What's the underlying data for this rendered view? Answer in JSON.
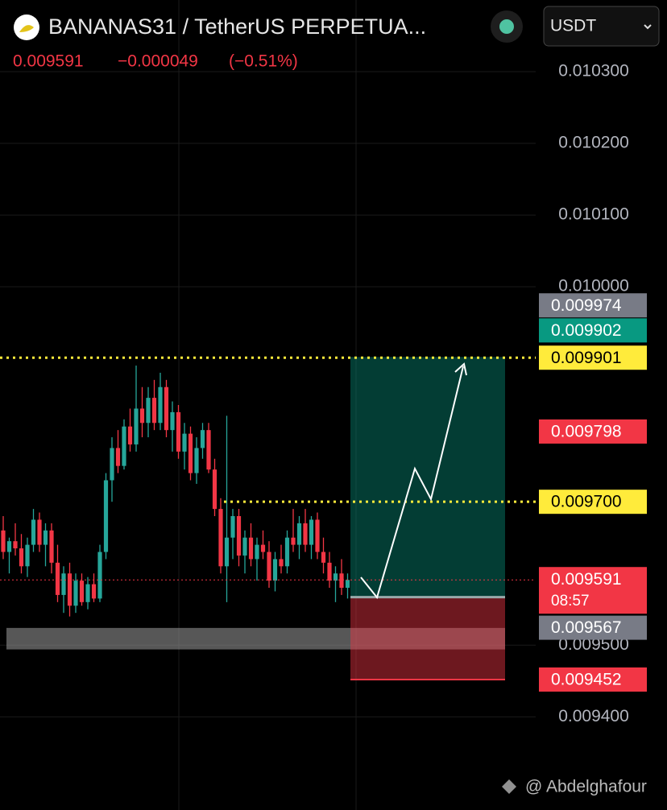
{
  "chart_data": {
    "type": "candlestick",
    "title": "BANANAS31 / TetherUS PERPETUA...",
    "last_price": "0.009591",
    "change": "−0.000049",
    "change_pct": "(−0.51%)",
    "currency": "USDT",
    "watermark": "@ Abdelghafour",
    "up_color": "#26a69a",
    "down_color": "#f23645",
    "ylim": [
      0.00927,
      0.0104
    ],
    "yticks": [
      {
        "value": 0.0103,
        "label": "0.010300"
      },
      {
        "value": 0.0102,
        "label": "0.010200"
      },
      {
        "value": 0.0101,
        "label": "0.010100"
      },
      {
        "value": 0.01,
        "label": "0.010000"
      },
      {
        "value": 0.0095,
        "label": "0.009500"
      },
      {
        "value": 0.0094,
        "label": "0.009400"
      }
    ],
    "grid": true,
    "open": [
      0.00966,
      0.00963,
      0.009645,
      0.009635,
      0.00961,
      0.00964,
      0.009675,
      0.00964,
      0.00966,
      0.009615,
      0.00957,
      0.0096,
      0.009555,
      0.00959,
      0.00956,
      0.009585,
      0.009565,
      0.00963,
      0.00973,
      0.009775,
      0.00975,
      0.009805,
      0.00978,
      0.00983,
      0.00981,
      0.009845,
      0.00981,
      0.00986,
      0.0098,
      0.009825,
      0.00977,
      0.009795,
      0.00974,
      0.009775,
      0.0098,
      0.009745,
      0.00969,
      0.00961,
      0.00965,
      0.00968,
      0.009625,
      0.00965,
      0.00962,
      0.00964,
      0.00963,
      0.00959,
      0.00962,
      0.00961,
      0.00965,
      0.00964,
      0.00967,
      0.00964,
      0.009675,
      0.00963,
      0.009615,
      0.00959,
      0.0096,
      0.00958
    ],
    "high": [
      0.00968,
      0.00965,
      0.00967,
      0.009655,
      0.00965,
      0.00969,
      0.009685,
      0.00967,
      0.00967,
      0.00964,
      0.00961,
      0.009615,
      0.0096,
      0.0096,
      0.009595,
      0.0096,
      0.00964,
      0.00974,
      0.00979,
      0.0098,
      0.009815,
      0.00983,
      0.00989,
      0.00986,
      0.00986,
      0.00987,
      0.00988,
      0.00987,
      0.00984,
      0.009835,
      0.00981,
      0.009805,
      0.00979,
      0.00981,
      0.00981,
      0.00976,
      0.009705,
      0.00982,
      0.00969,
      0.00969,
      0.00966,
      0.00967,
      0.00965,
      0.00966,
      0.009645,
      0.00963,
      0.00964,
      0.00966,
      0.00969,
      0.00968,
      0.00969,
      0.00968,
      0.009685,
      0.00965,
      0.00963,
      0.00961,
      0.00962,
      0.0096
    ],
    "low": [
      0.00962,
      0.0096,
      0.009625,
      0.0096,
      0.009595,
      0.00963,
      0.00963,
      0.00961,
      0.0096,
      0.00956,
      0.009545,
      0.00954,
      0.009545,
      0.009555,
      0.00955,
      0.00956,
      0.00956,
      0.00962,
      0.0097,
      0.00974,
      0.009745,
      0.00977,
      0.00977,
      0.00979,
      0.00979,
      0.0098,
      0.0098,
      0.00979,
      0.00977,
      0.00976,
      0.009745,
      0.00973,
      0.009725,
      0.00976,
      0.00974,
      0.00968,
      0.0096,
      0.00956,
      0.00962,
      0.00961,
      0.0096,
      0.00961,
      0.00959,
      0.00962,
      0.00958,
      0.009575,
      0.0096,
      0.0096,
      0.00963,
      0.00962,
      0.00963,
      0.00962,
      0.00962,
      0.0096,
      0.00958,
      0.00956,
      0.00957,
      0.009565
    ],
    "close": [
      0.00963,
      0.009645,
      0.009635,
      0.00961,
      0.00964,
      0.009675,
      0.00964,
      0.00966,
      0.009615,
      0.00957,
      0.0096,
      0.009555,
      0.00959,
      0.00956,
      0.009585,
      0.009565,
      0.00963,
      0.00973,
      0.009775,
      0.00975,
      0.009805,
      0.00978,
      0.00983,
      0.00981,
      0.009845,
      0.00981,
      0.00986,
      0.0098,
      0.009825,
      0.00977,
      0.009795,
      0.00974,
      0.009775,
      0.0098,
      0.009745,
      0.00969,
      0.00961,
      0.00965,
      0.00968,
      0.009625,
      0.00965,
      0.00962,
      0.00964,
      0.00963,
      0.00959,
      0.00962,
      0.00961,
      0.00965,
      0.00964,
      0.00967,
      0.00964,
      0.009675,
      0.00963,
      0.009615,
      0.00959,
      0.0096,
      0.00958,
      0.009591
    ],
    "price_labels": [
      {
        "value": 0.009974,
        "label": "0.009974",
        "color": "#787b86"
      },
      {
        "value": 0.009902,
        "label": "0.009902",
        "color": "#089981"
      },
      {
        "value": 0.009901,
        "label": "0.009901",
        "color": "#ffeb3b"
      },
      {
        "value": 0.009798,
        "label": "0.009798",
        "color": "#f23645"
      },
      {
        "value": 0.0097,
        "label": "0.009700",
        "color": "#ffeb3b"
      },
      {
        "value": 0.009591,
        "label": "0.009591",
        "color": "#f23645"
      },
      {
        "value": 0.009567,
        "label": "0.009567",
        "color": "#787b86"
      },
      {
        "value": 0.009452,
        "label": "0.009452",
        "color": "#f23645"
      }
    ],
    "countdown": "08:57",
    "zone": [
      0.009524,
      0.009494
    ]
  }
}
